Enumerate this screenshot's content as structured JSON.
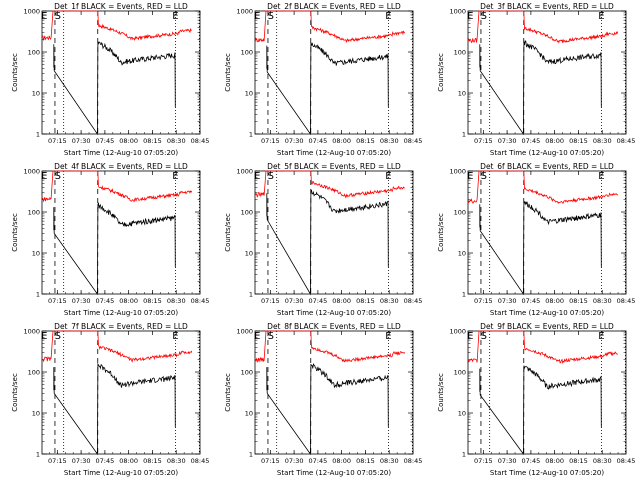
{
  "chart_data": [
    {
      "type": "line",
      "title": "Det_1f BLACK = Events, RED = LLD",
      "xlabel": "Start Time (12-Aug-10 07:05:20)",
      "ylabel": "Counts/sec"
    },
    {
      "type": "line",
      "title": "Det_2f BLACK = Events, RED = LLD",
      "xlabel": "Start Time (12-Aug-10 07:05:20)",
      "ylabel": "Counts/sec"
    },
    {
      "type": "line",
      "title": "Det_3f BLACK = Events, RED = LLD",
      "xlabel": "Start Time (12-Aug-10 07:05:20)",
      "ylabel": "Counts/sec"
    },
    {
      "type": "line",
      "title": "Det_4f BLACK = Events, RED = LLD",
      "xlabel": "Start Time (12-Aug-10 07:05:20)",
      "ylabel": "Counts/sec"
    },
    {
      "type": "line",
      "title": "Det_5f BLACK = Events, RED = LLD",
      "xlabel": "Start Time (12-Aug-10 07:05:20)",
      "ylabel": "Counts/sec"
    },
    {
      "type": "line",
      "title": "Det_6f BLACK = Events, RED = LLD",
      "xlabel": "Start Time (12-Aug-10 07:05:20)",
      "ylabel": "Counts/sec"
    },
    {
      "type": "line",
      "title": "Det_7f BLACK = Events, RED = LLD",
      "xlabel": "Start Time (12-Aug-10 07:05:20)",
      "ylabel": "Counts/sec"
    },
    {
      "type": "line",
      "title": "Det_8f BLACK = Events, RED = LLD",
      "xlabel": "Start Time (12-Aug-10 07:05:20)",
      "ylabel": "Counts/sec"
    },
    {
      "type": "line",
      "title": "Det_9f BLACK = Events, RED = LLD",
      "xlabel": "Start Time (12-Aug-10 07:05:20)",
      "ylabel": "Counts/sec"
    }
  ],
  "shared": {
    "x_tick_labels": [
      "07:15",
      "07:30",
      "07:45",
      "08:00",
      "08:15",
      "08:30",
      "08:45"
    ],
    "x_tick_minutes": [
      15,
      30,
      45,
      60,
      75,
      90,
      105
    ],
    "x_range_minutes": [
      5.33,
      105
    ],
    "y_tick_labels": [
      "1",
      "10",
      "100",
      "1000"
    ],
    "y_tick_values": [
      1,
      10,
      100,
      1000
    ],
    "ylim": [
      1,
      1000
    ],
    "y_scale": "log",
    "markers": {
      "e_label": "E",
      "s_label": "S"
    },
    "series": [
      {
        "name": "BLACK = Events",
        "color": "#000000"
      },
      {
        "name": "RED = LLD",
        "color": "#ff0000"
      }
    ],
    "events_level": [
      70,
      65,
      70,
      60,
      130,
      70,
      60,
      60,
      55
    ],
    "lld_level": [
      280,
      250,
      240,
      260,
      330,
      230,
      260,
      250,
      240
    ]
  }
}
